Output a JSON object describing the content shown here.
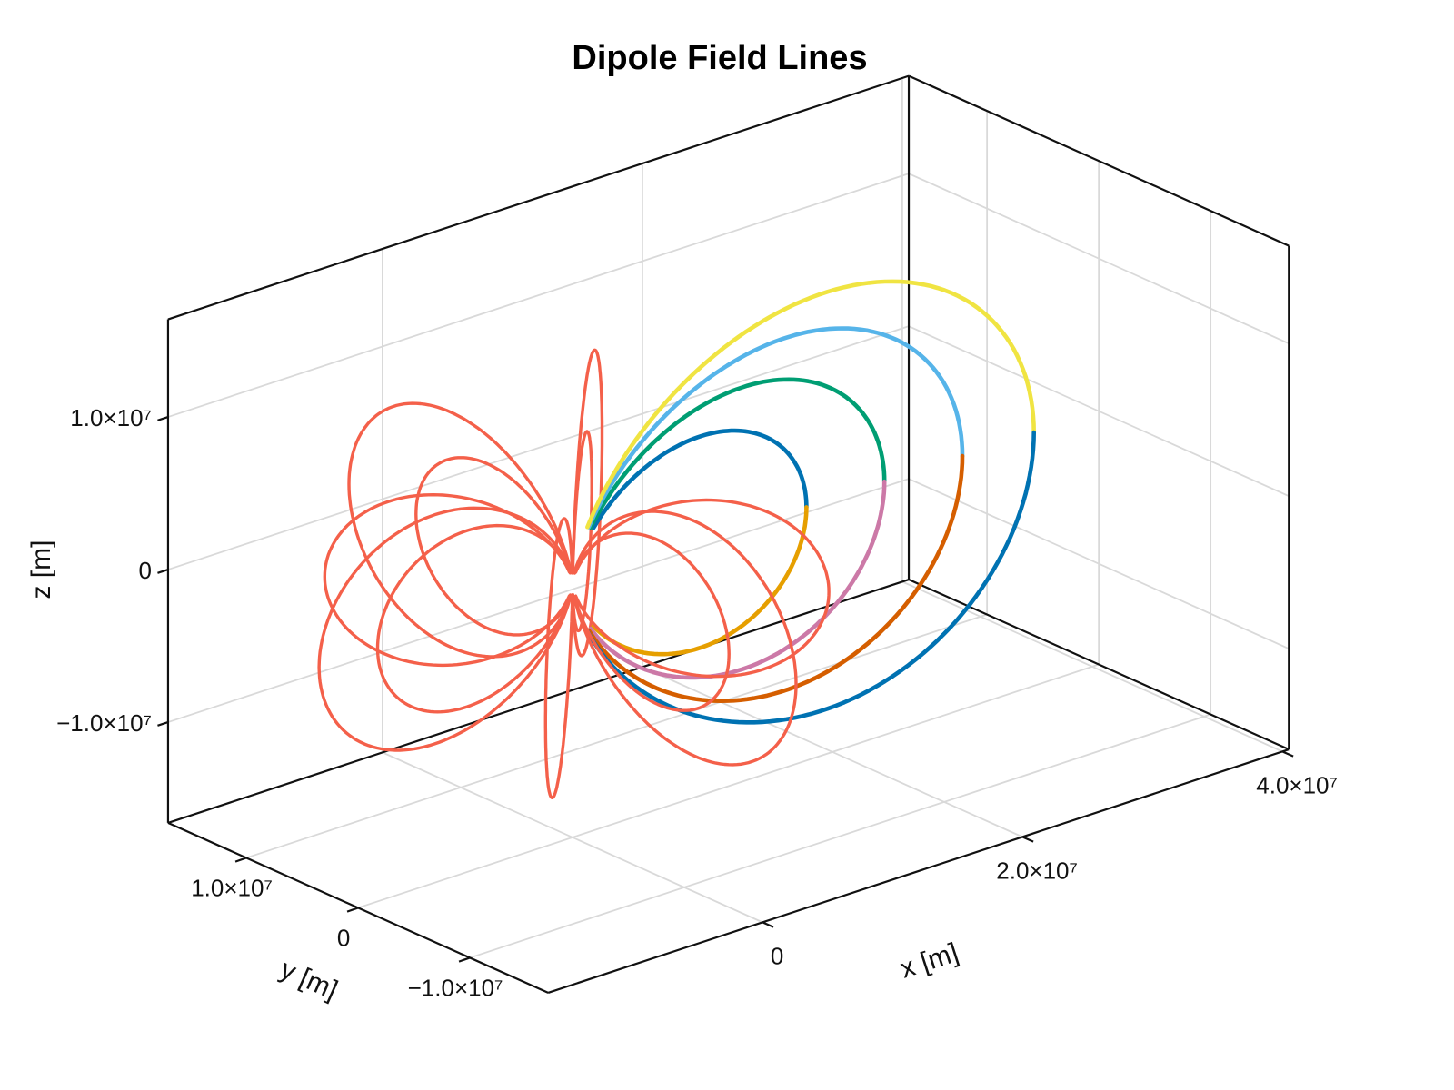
{
  "chart_data": {
    "type": "line3d",
    "title": "Dipole Field Lines",
    "view": "3d orthographic box, elevated oblique view, white background, grid on",
    "model": "dipole field line: r = L*cos^2(latitude) at fixed longitude phi",
    "axes": {
      "x": {
        "label": "x [m]",
        "lim": [
          -16500000,
          40500000
        ],
        "ticks": [
          {
            "value": 0,
            "label": "0"
          },
          {
            "value": 20000000,
            "label": "2.0×10⁷"
          },
          {
            "value": 40000000,
            "label": "4.0×10⁷"
          }
        ]
      },
      "y": {
        "label": "y [m]",
        "lim": [
          -17000000,
          17000000
        ],
        "ticks": [
          {
            "value": 10000000,
            "label": "1.0×10⁷"
          },
          {
            "value": 0,
            "label": "0"
          },
          {
            "value": -10000000,
            "label": "−1.0×10⁷"
          }
        ]
      },
      "z": {
        "label": "z [m]",
        "lim": [
          -16600000,
          16400000
        ],
        "ticks": [
          {
            "value": 10000000,
            "label": "1.0×10⁷"
          },
          {
            "value": 0,
            "label": "0"
          },
          {
            "value": -10000000,
            "label": "−1.0×10⁷"
          }
        ]
      }
    },
    "colored_field_lines": [
      {
        "phi_deg": 0,
        "L": 18000000,
        "north_color": "#0072B2",
        "south_color": "#E69F00"
      },
      {
        "phi_deg": 0,
        "L": 24000000,
        "north_color": "#009E73",
        "south_color": "#CC79A7"
      },
      {
        "phi_deg": 0,
        "L": 30000000,
        "north_color": "#56B4E9",
        "south_color": "#D55E00"
      },
      {
        "phi_deg": 0,
        "L": 35500000,
        "north_color": "#F0E442",
        "south_color": "#0072B2"
      }
    ],
    "red_field_lines": {
      "color": "#F4604A",
      "lobes": [
        {
          "phi_deg": 45,
          "L": 23000000
        },
        {
          "phi_deg": 45,
          "L": 15000000
        },
        {
          "phi_deg": 90,
          "L": 20000000
        },
        {
          "phi_deg": 90,
          "L": 14000000
        },
        {
          "phi_deg": 135,
          "L": 14500000
        },
        {
          "phi_deg": 180,
          "L": 19500000
        },
        {
          "phi_deg": 180,
          "L": 15000000
        },
        {
          "phi_deg": 225,
          "L": 21000000
        },
        {
          "phi_deg": 270,
          "L": 20000000
        },
        {
          "phi_deg": 270,
          "L": 14000000
        },
        {
          "phi_deg": 315,
          "L": 15000000
        }
      ]
    },
    "start_radius": {
      "colored": 3600000,
      "red": 800000
    },
    "palette_wong": [
      "#0072B2",
      "#E69F00",
      "#009E73",
      "#CC79A7",
      "#56B4E9",
      "#D55E00",
      "#F0E442"
    ],
    "colors": {
      "box": "#111111",
      "grid": "#d9d9d9",
      "title": "#000000",
      "text": "#111111",
      "background": "#ffffff"
    }
  }
}
